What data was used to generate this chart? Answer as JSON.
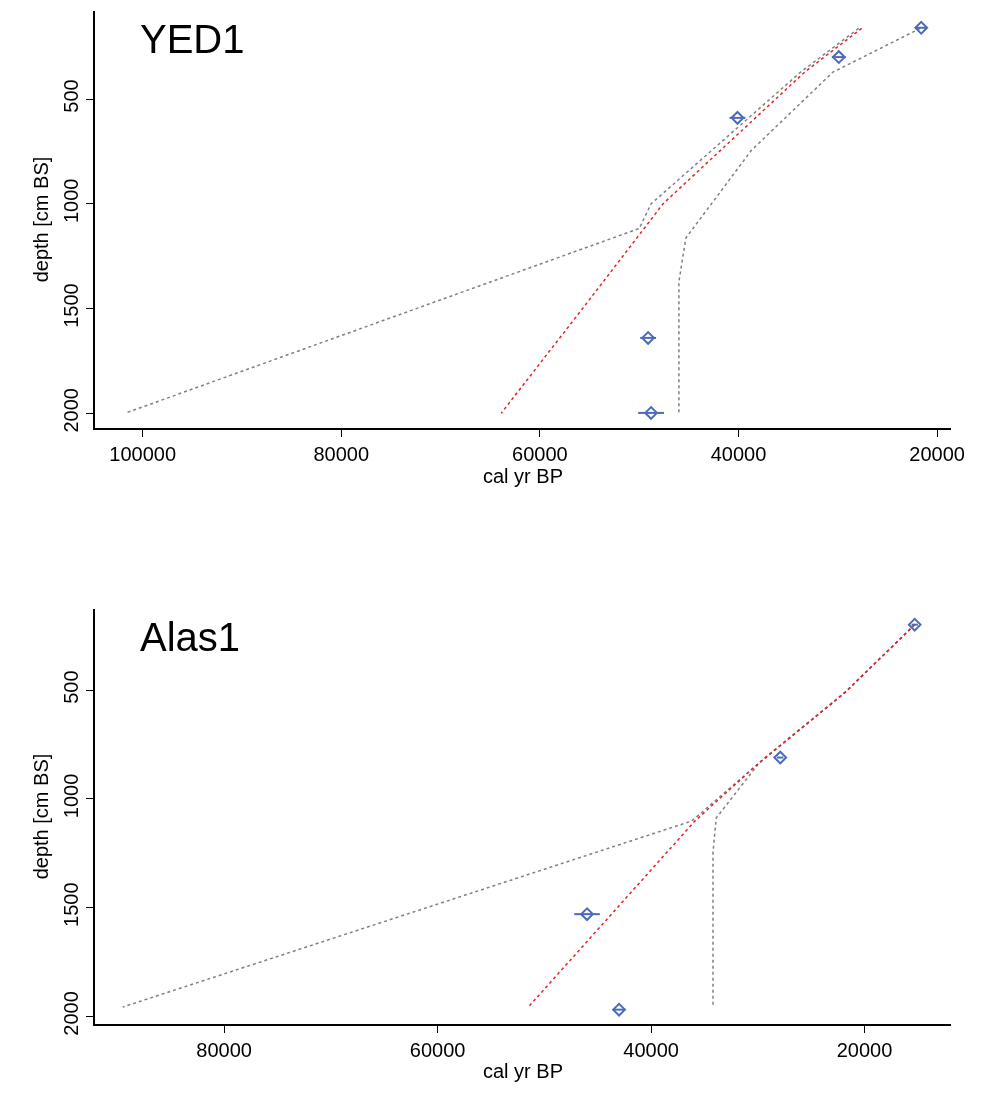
{
  "chart_data": [
    {
      "type": "line",
      "title": "YED1",
      "xlabel": "cal yr BP",
      "ylabel": "depth [cm BS]",
      "xlim": [
        104800,
        18600
      ],
      "xticks": [
        100000,
        80000,
        60000,
        40000,
        20000
      ],
      "ylim": [
        2070,
        80
      ],
      "yticks": [
        500,
        1000,
        1500,
        2000
      ],
      "series": [
        {
          "color": "#808080",
          "line_style": "dotted",
          "marker": "none",
          "x": [
            27900,
            33700,
            48800,
            50000,
            101800
          ],
          "values": [
            163,
            370,
            1000,
            1118,
            2000
          ]
        },
        {
          "color": "#808080",
          "line_style": "dotted",
          "marker": "none",
          "x": [
            21700,
            30500,
            38700,
            45300,
            46000,
            46000
          ],
          "values": [
            163,
            372,
            745,
            1163,
            1372,
            2000
          ]
        },
        {
          "color": "#e8202a",
          "line_style": "dotted",
          "marker": "none",
          "x": [
            27600,
            33300,
            47600,
            49700,
            55700,
            63900
          ],
          "values": [
            163,
            370,
            1000,
            1130,
            1500,
            2000
          ]
        },
        {
          "type": "scatter",
          "color": "#4a6bb8",
          "marker": "diamond",
          "x": [
            21600,
            29900,
            40100,
            49100,
            48800
          ],
          "values": [
            160,
            300,
            590,
            1640,
            1998
          ],
          "xerrors": [
            500,
            700,
            800,
            800,
            1300
          ]
        }
      ]
    },
    {
      "type": "line",
      "title": "Alas1",
      "xlabel": "cal yr BP",
      "ylabel": "depth [cm BS]",
      "xlim": [
        92100,
        11900
      ],
      "xticks": [
        80000,
        60000,
        40000,
        20000
      ],
      "ylim": [
        2035,
        127
      ],
      "yticks": [
        500,
        1000,
        1500,
        2000
      ],
      "series": [
        {
          "color": "#808080",
          "line_style": "dotted",
          "marker": "none",
          "x": [
            15300,
            21900,
            30100,
            36200,
            89500
          ],
          "values": [
            199,
            514,
            844,
            1102,
            1957
          ]
        },
        {
          "color": "#808080",
          "line_style": "dotted",
          "marker": "none",
          "x": [
            15300,
            21600,
            29800,
            33900,
            34200,
            34200
          ],
          "values": [
            199,
            500,
            830,
            1088,
            1246,
            1957
          ]
        },
        {
          "color": "#e8202a",
          "line_style": "dotted",
          "marker": "none",
          "x": [
            15300,
            21900,
            30100,
            35900,
            51500
          ],
          "values": [
            199,
            514,
            844,
            1102,
            1957
          ]
        },
        {
          "type": "scatter",
          "color": "#4a6bb8",
          "marker": "diamond",
          "x": [
            15300,
            27900,
            46000,
            43000
          ],
          "values": [
            199,
            810,
            1530,
            1969
          ],
          "xerrors": [
            300,
            300,
            1200,
            600
          ]
        }
      ]
    }
  ]
}
